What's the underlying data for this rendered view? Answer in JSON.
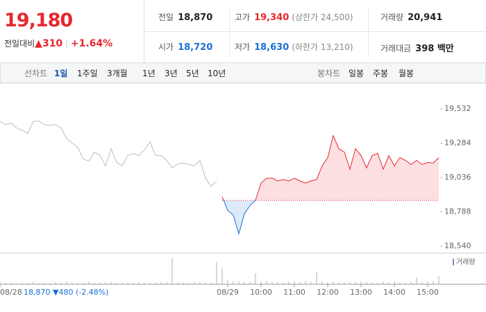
{
  "quote": {
    "price": "19,180",
    "change_label": "전일대비",
    "change": "310",
    "change_pct": "+1.64%"
  },
  "stats": [
    {
      "label": "전일",
      "value": "18,870",
      "color": "#222"
    },
    {
      "label": "고가",
      "value": "19,340",
      "note": "(상한가 24,500)",
      "color": "#e8272e"
    },
    {
      "label": "거래량",
      "value": "20,941",
      "color": "#222"
    },
    {
      "label": "시가",
      "value": "18,720",
      "color": "#1a6fd6"
    },
    {
      "label": "저가",
      "value": "18,630",
      "note": "(하한가 13,210)",
      "color": "#1a6fd6"
    },
    {
      "label": "거래대금",
      "value": "398 백만",
      "color": "#222"
    }
  ],
  "tabs": {
    "line_label": "선차트",
    "line": [
      "1일",
      "1주일",
      "3개월",
      "1년",
      "3년",
      "5년",
      "10년"
    ],
    "active": 0,
    "candle_label": "봉차트",
    "candle": [
      "일봉",
      "주봉",
      "월봉"
    ]
  },
  "footer": {
    "close": "18,870",
    "change": "480",
    "change_pct": "(-2.48%)"
  },
  "chart_data": {
    "type": "line",
    "xlim": [
      0,
      79
    ],
    "ylim": [
      18540,
      19532
    ],
    "yticks": [
      {
        "value": 19532,
        "label": "19,532"
      },
      {
        "value": 19284,
        "label": "19,284"
      },
      {
        "value": 19036,
        "label": "19,036"
      },
      {
        "value": 18788,
        "label": "18,788"
      },
      {
        "value": 18540,
        "label": "18,540"
      }
    ],
    "xticks": [
      {
        "value": 0,
        "label": "08/28"
      },
      {
        "value": 41,
        "label": "08/29"
      },
      {
        "value": 47,
        "label": "10:00"
      },
      {
        "value": 53,
        "label": "11:00"
      },
      {
        "value": 59,
        "label": "12:00"
      },
      {
        "value": 65,
        "label": "13:00"
      },
      {
        "value": 71,
        "label": "14:00"
      },
      {
        "value": 77,
        "label": "15:00"
      }
    ],
    "baseline": 18870,
    "series": [
      {
        "color": "#bdbdbd",
        "x": [
          0,
          1,
          2,
          3,
          4,
          5,
          6,
          7,
          8,
          9,
          10,
          11,
          12,
          13,
          14,
          15,
          16,
          17,
          18,
          19,
          20,
          21,
          22,
          23,
          24,
          25,
          26,
          27,
          28,
          29,
          30,
          31,
          32,
          33,
          34,
          35,
          36,
          37,
          38,
          39
        ],
        "values": [
          19443,
          19418,
          19428,
          19393,
          19378,
          19353,
          19443,
          19443,
          19418,
          19413,
          19418,
          19393,
          19319,
          19284,
          19254,
          19170,
          19155,
          19220,
          19195,
          19120,
          19244,
          19145,
          19120,
          19195,
          19210,
          19195,
          19234,
          19294,
          19195,
          19195,
          19160,
          19105,
          19135,
          19140,
          19130,
          19120,
          19160,
          19031,
          18972,
          19011
        ]
      },
      {
        "color": "#e8272e",
        "below_color": "#1a6fd6",
        "x": [
          40,
          41,
          42,
          43,
          44,
          45,
          46,
          47,
          48,
          49,
          50,
          51,
          52,
          53,
          54,
          55,
          56,
          57,
          58,
          59,
          60,
          61,
          62,
          63,
          64,
          65,
          66,
          67,
          68,
          69,
          70,
          71,
          72,
          73,
          74,
          75,
          76,
          77,
          78,
          79
        ],
        "values": [
          18897,
          18798,
          18764,
          18630,
          18773,
          18833,
          18872,
          18996,
          19031,
          19031,
          19011,
          19021,
          19011,
          19031,
          19011,
          18996,
          19011,
          19021,
          19120,
          19180,
          19339,
          19244,
          19220,
          19096,
          19244,
          19195,
          19105,
          19195,
          19210,
          19096,
          19195,
          19120,
          19180,
          19160,
          19130,
          19160,
          19130,
          19145,
          19140,
          19180
        ]
      }
    ],
    "volume": {
      "name": "거래량",
      "color": "#b0b0b0",
      "legend_color": "#9a7fd0",
      "ylim": [
        0,
        100
      ],
      "values": [
        8,
        5,
        6,
        4,
        7,
        5,
        9,
        4,
        6,
        5,
        8,
        6,
        10,
        7,
        5,
        6,
        9,
        5,
        7,
        6,
        8,
        5,
        6,
        7,
        5,
        9,
        6,
        5,
        7,
        8,
        6,
        95,
        8,
        6,
        5,
        7,
        9,
        6,
        8,
        80,
        60,
        15,
        12,
        10,
        9,
        8,
        40,
        10,
        12,
        9,
        8,
        7,
        10,
        9,
        8,
        12,
        9,
        45,
        10,
        8,
        9,
        7,
        8,
        6,
        9,
        10,
        8,
        7,
        6,
        9,
        8,
        10,
        7,
        6,
        9,
        25,
        8,
        10,
        12,
        30
      ]
    }
  }
}
